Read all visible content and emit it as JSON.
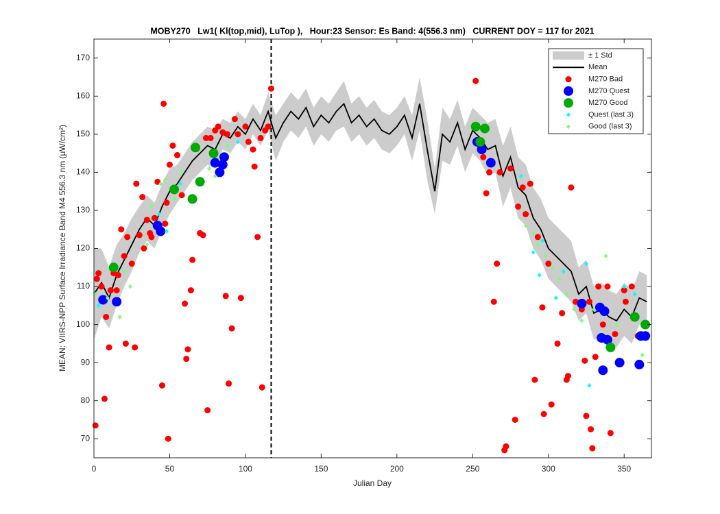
{
  "chart_data": {
    "type": "line",
    "title": "MOBY270   Lw1( Kl(top,mid), LuTop ),   Hour:23 Sensor: Es Band: 4(556.3 nm)   CURRENT DOY = 117 for 2021",
    "x_label": "Julian Day",
    "y_label": "MEAN: VIIRS-NPP Surface Irradiance Band M4 556.3 nm (μW/cm²)",
    "xlim": [
      0,
      368
    ],
    "ylim": [
      65,
      175
    ],
    "xticks": [
      0,
      50,
      100,
      150,
      200,
      250,
      300,
      350
    ],
    "yticks": [
      70,
      80,
      90,
      100,
      110,
      120,
      130,
      140,
      150,
      160,
      170
    ],
    "current_doy": 117,
    "x": [
      0,
      5,
      10,
      15,
      20,
      25,
      30,
      35,
      40,
      45,
      50,
      55,
      60,
      65,
      70,
      75,
      80,
      85,
      90,
      95,
      100,
      105,
      110,
      115,
      120,
      125,
      130,
      135,
      140,
      145,
      150,
      155,
      160,
      165,
      170,
      175,
      180,
      185,
      190,
      195,
      200,
      205,
      210,
      215,
      220,
      225,
      230,
      235,
      240,
      245,
      250,
      255,
      260,
      265,
      270,
      275,
      280,
      285,
      290,
      295,
      300,
      305,
      310,
      315,
      320,
      325,
      330,
      335,
      340,
      345,
      350,
      355,
      360,
      365
    ],
    "band": {
      "name": "± 1 Std",
      "color": "#cccccc",
      "std": [
        12,
        9,
        8,
        8,
        7,
        7,
        6,
        6,
        6,
        6,
        6,
        5,
        5,
        5,
        5,
        5,
        5,
        4,
        4,
        4,
        4,
        4,
        4,
        5,
        6,
        5,
        5,
        5,
        5,
        5,
        5,
        5,
        5,
        6,
        5,
        5,
        5,
        5,
        5,
        5,
        5,
        5,
        6,
        7,
        8,
        6,
        7,
        6,
        6,
        6,
        6,
        6,
        7,
        7,
        8,
        8,
        8,
        8,
        8,
        8,
        8,
        8,
        8,
        8,
        7,
        7,
        7,
        7,
        7,
        7,
        7,
        7,
        7,
        7
      ]
    },
    "series": [
      {
        "name": "Mean",
        "color": "#000000",
        "values": [
          108,
          111,
          107,
          113,
          117,
          121,
          125,
          128,
          126,
          131,
          135,
          137,
          140,
          143,
          145,
          147,
          146,
          150,
          149,
          152,
          150,
          154,
          151,
          156,
          149,
          153,
          156,
          154,
          157,
          152,
          155,
          153,
          156,
          158,
          153,
          155,
          152,
          154,
          151,
          150,
          152,
          155,
          149,
          158,
          146,
          135,
          150,
          148,
          153,
          146,
          151,
          149,
          146,
          147,
          139,
          144,
          136,
          134,
          128,
          125,
          120,
          118,
          116,
          114,
          108,
          110,
          103,
          104,
          102,
          101,
          104,
          102,
          107,
          106
        ]
      }
    ],
    "scatter_series": [
      {
        "name": "M270 Bad",
        "color": "#ff0000",
        "marker": "circle",
        "size": 4.5,
        "x": [
          1,
          2,
          3,
          5,
          7,
          8,
          10,
          11,
          13,
          15,
          16,
          18,
          20,
          21,
          22,
          25,
          27,
          28,
          30,
          32,
          33,
          35,
          37,
          38,
          40,
          42,
          45,
          46,
          47,
          48,
          49,
          50,
          52,
          55,
          58,
          60,
          61,
          62,
          64,
          65,
          70,
          72,
          74,
          75,
          77,
          80,
          82,
          85,
          87,
          88,
          89,
          91,
          93,
          95,
          97,
          100,
          102,
          105,
          106,
          108,
          110,
          111,
          113,
          115,
          117,
          252,
          255,
          257,
          259,
          261,
          264,
          266,
          268,
          271,
          272,
          275,
          278,
          280,
          283,
          285,
          288,
          291,
          293,
          296,
          297,
          300,
          302,
          306,
          309,
          312,
          313,
          315,
          318,
          322,
          324,
          325,
          327,
          328,
          329,
          331,
          333,
          336,
          339,
          341,
          344,
          350,
          351,
          355,
          359
        ],
        "y": [
          73.5,
          112,
          113.5,
          110,
          80.5,
          102,
          94,
          109,
          113.5,
          109,
          113,
          125,
          118,
          95,
          123,
          116,
          94,
          137,
          123.5,
          133.5,
          120,
          127.5,
          124,
          123,
          128,
          137.5,
          84,
          158,
          126.5,
          132,
          70,
          142,
          147,
          144.5,
          134,
          105.5,
          91,
          93.5,
          109,
          117,
          124,
          123.5,
          149,
          77.5,
          149,
          151,
          152,
          150.5,
          107.5,
          150,
          84.5,
          99,
          154,
          150,
          107,
          152,
          148,
          146,
          141.5,
          123,
          149,
          83.5,
          151,
          152,
          162,
          164,
          147,
          144,
          134.5,
          140,
          106,
          116,
          140,
          67,
          68,
          141,
          75,
          131,
          136,
          129,
          137,
          85.5,
          123,
          104.5,
          76.5,
          116,
          79,
          95,
          103,
          85.5,
          86.5,
          136,
          106,
          104,
          90.5,
          76,
          106,
          72.5,
          67.5,
          91.5,
          110,
          100,
          110,
          71.5,
          97.5,
          109,
          106,
          110,
          97
        ]
      },
      {
        "name": "M270 Quest",
        "color": "#0000ff",
        "marker": "circle",
        "size": 7,
        "x": [
          6,
          15,
          42,
          44,
          80,
          83,
          85,
          86,
          253,
          256,
          262,
          322,
          334,
          335,
          336,
          337,
          339,
          347,
          360,
          361,
          364
        ],
        "y": [
          106.5,
          106,
          126,
          124.5,
          142.5,
          140,
          142,
          144,
          148,
          146,
          142.5,
          105.5,
          104.5,
          96.5,
          88,
          103.5,
          96,
          90,
          89.5,
          97,
          97
        ]
      },
      {
        "name": "M270 Good",
        "color": "#00aa00",
        "marker": "circle",
        "size": 7,
        "x": [
          13,
          53,
          65,
          67,
          70,
          79,
          252,
          255,
          258,
          341,
          357,
          364
        ],
        "y": [
          115,
          135.5,
          133,
          146.5,
          137.5,
          145,
          152,
          148,
          151.5,
          94,
          102,
          100
        ]
      },
      {
        "name": "Quest (last 3)",
        "color": "#00ffff",
        "marker": "diamond",
        "size": 3.5,
        "x": [
          3,
          43,
          48,
          57,
          95,
          282,
          290,
          294,
          296,
          305,
          310,
          327,
          325,
          350,
          357
        ],
        "y": [
          105,
          129,
          124.5,
          137,
          148,
          139,
          119,
          113,
          122,
          107,
          114,
          84,
          116,
          110,
          108
        ]
      },
      {
        "name": "Good (last 3)",
        "color": "#77ff77",
        "marker": "diamond",
        "size": 3.5,
        "x": [
          1,
          9,
          17,
          20,
          24,
          35,
          38,
          44,
          47,
          53,
          58,
          76,
          80,
          88,
          285,
          290,
          293,
          298,
          303,
          307,
          312,
          317,
          322,
          330,
          338,
          345,
          362
        ],
        "y": [
          108,
          107,
          102,
          114,
          110,
          121,
          131,
          137,
          138,
          133,
          140,
          141,
          139,
          147,
          126,
          124,
          121,
          118,
          115,
          112,
          108,
          104,
          101,
          104,
          118,
          100,
          92
        ]
      }
    ]
  }
}
